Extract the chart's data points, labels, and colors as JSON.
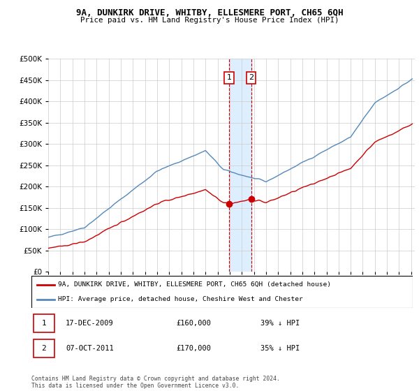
{
  "title": "9A, DUNKIRK DRIVE, WHITBY, ELLESMERE PORT, CH65 6QH",
  "subtitle": "Price paid vs. HM Land Registry's House Price Index (HPI)",
  "hpi_label": "HPI: Average price, detached house, Cheshire West and Chester",
  "property_label": "9A, DUNKIRK DRIVE, WHITBY, ELLESMERE PORT, CH65 6QH (detached house)",
  "hpi_color": "#5588bb",
  "property_color": "#cc0000",
  "vline_color": "#cc0000",
  "shade_color": "#ddeeff",
  "background_color": "#ffffff",
  "grid_color": "#cccccc",
  "ylim": [
    0,
    500000
  ],
  "yticks": [
    0,
    50000,
    100000,
    150000,
    200000,
    250000,
    300000,
    350000,
    400000,
    450000,
    500000
  ],
  "sale1_year": 2009.96,
  "sale2_year": 2011.77,
  "sale1_price": 160000,
  "sale2_price": 170000,
  "sale1_label": "17-DEC-2009",
  "sale2_label": "07-OCT-2011",
  "sale1_hpi_pct": "39% ↓ HPI",
  "sale2_hpi_pct": "35% ↓ HPI",
  "footer": "Contains HM Land Registry data © Crown copyright and database right 2024.\nThis data is licensed under the Open Government Licence v3.0."
}
